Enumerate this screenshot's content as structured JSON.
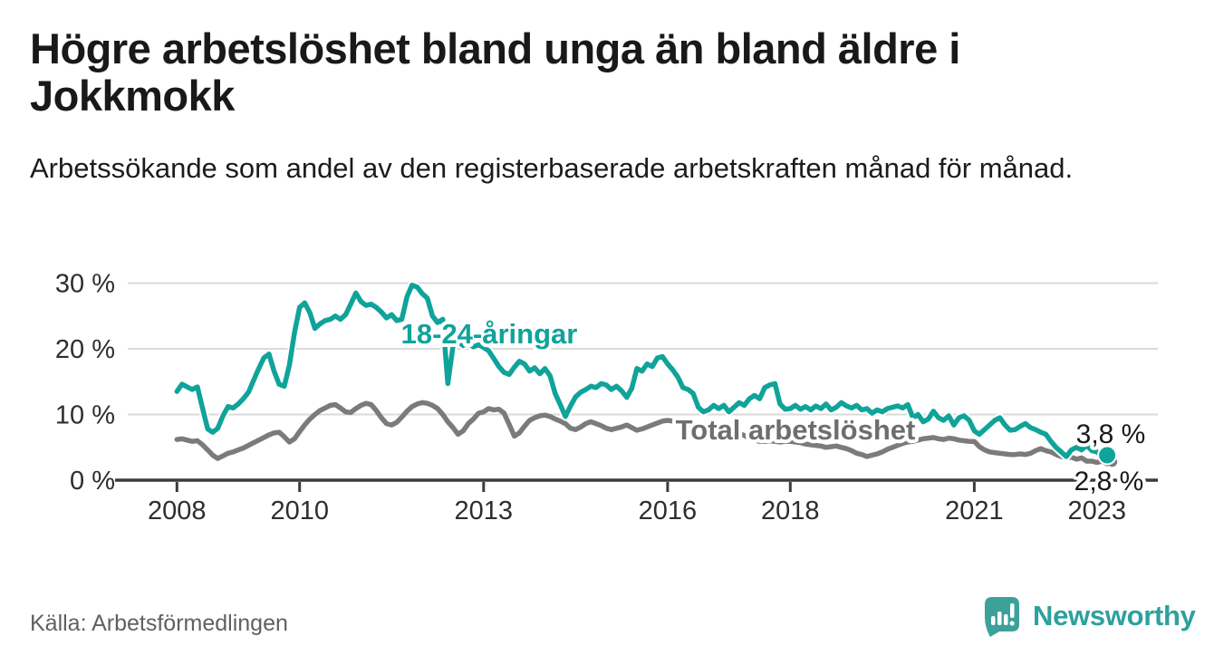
{
  "header": {
    "title": "Högre arbetslöshet bland unga än bland äldre i Jokkmokk",
    "subtitle": "Arbetssökande som andel av den registerbaserade arbetskraften månad för månad."
  },
  "footer": {
    "source": "Källa: Arbetsförmedlingen",
    "brand": "Newsworthy"
  },
  "colors": {
    "youth_line": "#10a39a",
    "total_line": "#7b7b7b",
    "total_label": "#6e6e6e",
    "end_label": "#1a1a1a",
    "gridline": "#dadada",
    "axis": "#3c3c3c",
    "tick_label": "#2e2e2e",
    "logo_teal": "#3da19b"
  },
  "chart_data": {
    "type": "line",
    "title": "Högre arbetslöshet bland unga än bland äldre i Jokkmokk",
    "subtitle": "Arbetssökande som andel av den registerbaserade arbetskraften månad för månad.",
    "xlabel": "",
    "ylabel": "",
    "x_unit": "month",
    "x_start": "2008-01",
    "grid": "horizontal",
    "legend_position": "inline-labels",
    "ylim": [
      0,
      31
    ],
    "ytick_values": [
      0,
      10,
      20,
      30
    ],
    "ytick_labels": [
      "0 %",
      "10 %",
      "20 %",
      "30 %"
    ],
    "xtick_years": [
      2008,
      2010,
      2013,
      2016,
      2018,
      2021,
      2023
    ],
    "xtick_labels": [
      "2008",
      "2010",
      "2013",
      "2016",
      "2018",
      "2021",
      "2023"
    ],
    "series": [
      {
        "id": "total",
        "name": "Total arbetslöshet",
        "color": "#7b7b7b",
        "end_label": "2,8 %",
        "end_value": 2.8,
        "x_end": "2023-04",
        "values": [
          6.2,
          6.3,
          6.1,
          5.9,
          6.0,
          5.4,
          4.6,
          3.8,
          3.3,
          3.7,
          4.1,
          4.3,
          4.6,
          4.9,
          5.3,
          5.7,
          6.1,
          6.5,
          6.9,
          7.2,
          7.3,
          6.6,
          5.8,
          6.3,
          7.4,
          8.4,
          9.3,
          10.0,
          10.6,
          11.0,
          11.4,
          11.5,
          11.0,
          10.4,
          10.3,
          10.9,
          11.4,
          11.7,
          11.5,
          10.6,
          9.5,
          8.6,
          8.4,
          8.8,
          9.6,
          10.5,
          11.2,
          11.6,
          11.8,
          11.7,
          11.4,
          10.9,
          10.0,
          8.9,
          8.0,
          7.0,
          7.5,
          8.6,
          9.3,
          10.2,
          10.4,
          10.9,
          10.7,
          10.8,
          10.2,
          8.5,
          6.7,
          7.2,
          8.2,
          9.1,
          9.5,
          9.8,
          9.9,
          9.7,
          9.3,
          9.0,
          8.6,
          7.9,
          7.7,
          8.1,
          8.6,
          8.9,
          8.6,
          8.3,
          7.9,
          7.7,
          7.9,
          8.1,
          8.4,
          8.0,
          7.6,
          7.8,
          8.1,
          8.4,
          8.7,
          9.0,
          9.1,
          9.0,
          8.8,
          8.7,
          8.5,
          8.4,
          8.2,
          8.1,
          8.0,
          7.9,
          7.8,
          7.7,
          7.6,
          7.4,
          7.1,
          6.8,
          6.4,
          6.1,
          5.9,
          5.9,
          6.0,
          5.9,
          5.8,
          5.9,
          5.9,
          5.8,
          5.7,
          5.5,
          5.4,
          5.3,
          5.2,
          5.0,
          5.1,
          5.2,
          5.0,
          4.8,
          4.5,
          4.1,
          3.9,
          3.6,
          3.8,
          4.0,
          4.3,
          4.7,
          5.0,
          5.3,
          5.6,
          5.8,
          5.9,
          6.1,
          6.3,
          6.4,
          6.5,
          6.3,
          6.2,
          6.4,
          6.3,
          6.1,
          6.0,
          5.9,
          5.9,
          5.1,
          4.6,
          4.3,
          4.2,
          4.1,
          4.0,
          3.9,
          3.9,
          4.0,
          3.9,
          4.1,
          4.5,
          4.8,
          4.5,
          4.3,
          3.9,
          3.6,
          3.4,
          3.5,
          3.2,
          3.4,
          2.9,
          2.9,
          2.7,
          2.9,
          2.5,
          2.8
        ]
      },
      {
        "id": "youth",
        "name": "18-24-åringar",
        "color": "#10a39a",
        "end_label": "3,8 %",
        "end_value": 3.8,
        "x_end": "2023-03",
        "values": [
          13.5,
          14.6,
          14.2,
          13.8,
          14.2,
          11.0,
          7.8,
          7.3,
          7.9,
          9.8,
          11.2,
          11.0,
          11.6,
          12.4,
          13.4,
          15.2,
          17.0,
          18.6,
          19.2,
          16.6,
          14.6,
          14.3,
          17.5,
          22.5,
          26.3,
          27.0,
          25.5,
          23.1,
          23.8,
          24.3,
          24.5,
          25.0,
          24.5,
          25.2,
          26.8,
          28.5,
          27.2,
          26.6,
          26.8,
          26.3,
          25.6,
          24.7,
          25.2,
          24.3,
          24.5,
          27.9,
          29.7,
          29.4,
          28.4,
          27.7,
          25.0,
          24.0,
          24.5,
          14.7,
          20.4,
          21.1,
          20.5,
          20.9,
          20.3,
          20.6,
          20.2,
          19.7,
          18.5,
          17.3,
          16.4,
          16.1,
          17.2,
          18.1,
          17.7,
          16.6,
          17.1,
          16.2,
          17.0,
          15.9,
          13.2,
          11.5,
          9.7,
          11.3,
          12.7,
          13.4,
          13.8,
          14.3,
          14.1,
          14.7,
          14.5,
          13.8,
          14.3,
          13.6,
          12.6,
          14.0,
          17.0,
          16.6,
          17.7,
          17.3,
          18.6,
          18.8,
          17.7,
          16.8,
          15.7,
          14.1,
          13.8,
          13.2,
          11.1,
          10.4,
          10.7,
          11.4,
          10.9,
          11.4,
          10.4,
          11.1,
          11.8,
          11.4,
          12.4,
          12.9,
          12.4,
          14.1,
          14.5,
          14.7,
          11.6,
          10.8,
          10.9,
          11.4,
          10.8,
          11.2,
          10.7,
          11.3,
          10.9,
          11.6,
          10.7,
          11.1,
          11.8,
          11.3,
          11.0,
          11.4,
          10.7,
          10.9,
          10.2,
          10.7,
          10.4,
          10.9,
          11.1,
          11.3,
          11.0,
          11.5,
          9.5,
          10.0,
          8.9,
          9.3,
          10.5,
          9.5,
          9.1,
          9.8,
          8.4,
          9.5,
          9.8,
          9.1,
          7.5,
          7.0,
          7.7,
          8.4,
          9.1,
          9.5,
          8.4,
          7.6,
          7.7,
          8.2,
          8.6,
          8.0,
          7.7,
          7.3,
          7.0,
          5.9,
          5.0,
          4.3,
          3.6,
          4.6,
          5.0,
          4.6,
          5.3,
          4.5,
          4.3,
          3.6,
          3.8
        ]
      }
    ]
  }
}
